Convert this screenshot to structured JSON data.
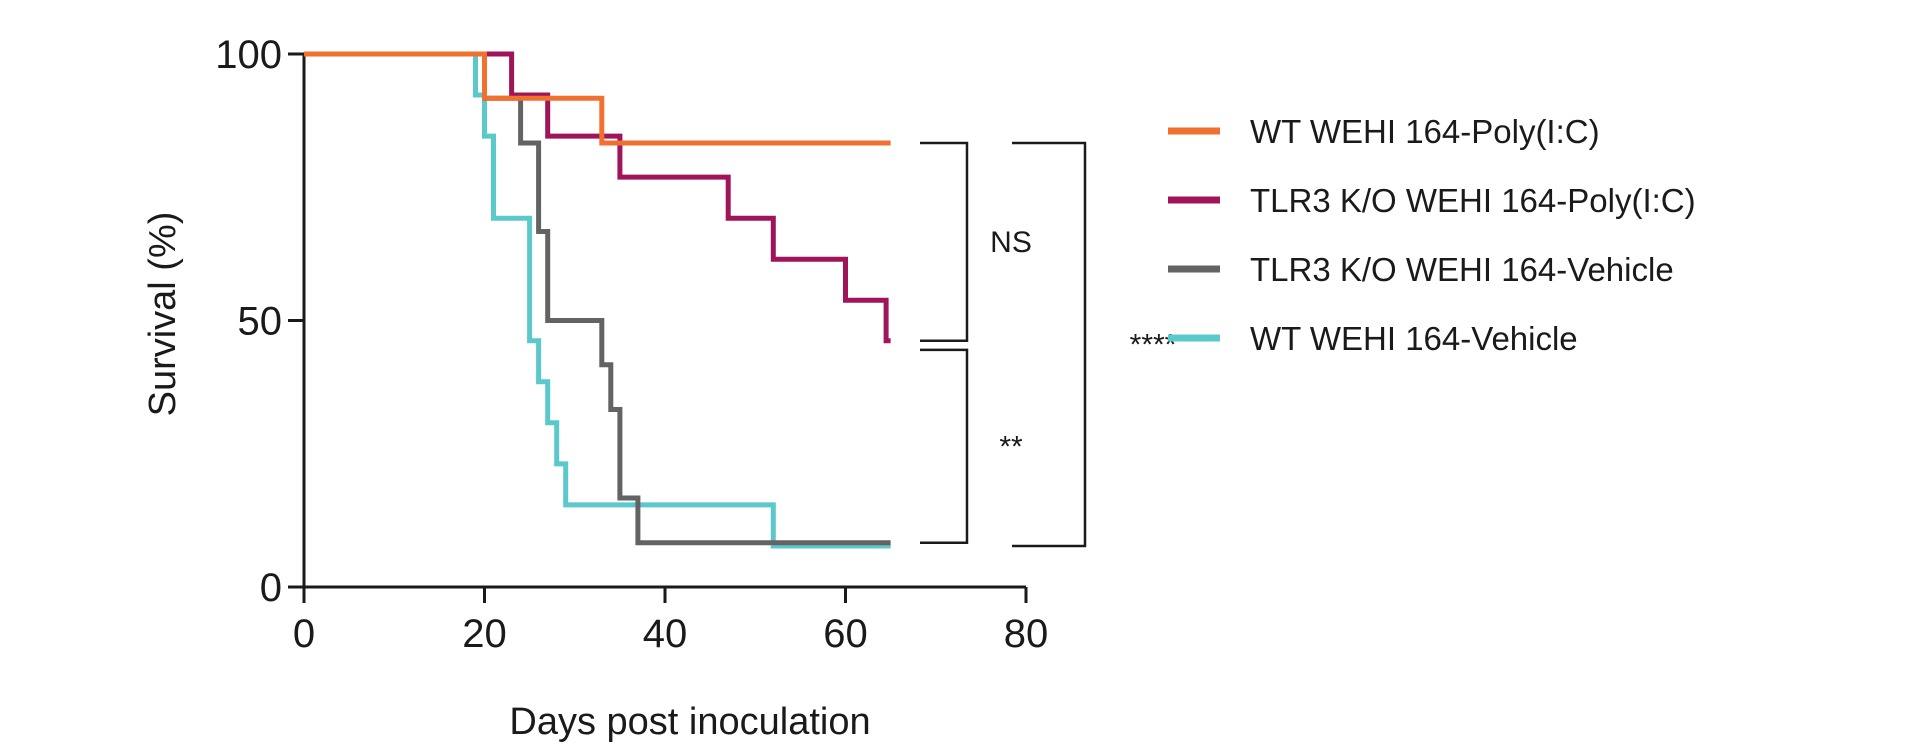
{
  "chart_data": {
    "type": "line",
    "subtype": "kaplan-meier",
    "title": "",
    "xlabel": "Days post inoculation",
    "ylabel": "Survival (%)",
    "xlim": [
      0,
      80
    ],
    "ylim": [
      0,
      100
    ],
    "xticks": [
      "0",
      "20",
      "40",
      "60",
      "80"
    ],
    "yticks": [
      "0",
      "50",
      "100"
    ],
    "grid": false,
    "legend_position": "right",
    "series": [
      {
        "name": "WT WEHI 164-Poly(I:C)",
        "color": "#f07030",
        "points": [
          [
            0,
            100
          ],
          [
            20,
            100
          ],
          [
            20,
            91.7
          ],
          [
            33,
            91.7
          ],
          [
            33,
            83.3
          ],
          [
            65,
            83.3
          ]
        ]
      },
      {
        "name": "TLR3 K/O WEHI 164-Poly(I:C)",
        "color": "#a0155a",
        "points": [
          [
            0,
            100
          ],
          [
            23,
            100
          ],
          [
            23,
            92.3
          ],
          [
            27,
            92.3
          ],
          [
            27,
            84.6
          ],
          [
            35,
            84.6
          ],
          [
            35,
            76.9
          ],
          [
            47,
            76.9
          ],
          [
            47,
            69.2
          ],
          [
            52,
            69.2
          ],
          [
            52,
            61.5
          ],
          [
            60,
            61.5
          ],
          [
            60,
            53.8
          ],
          [
            64.5,
            53.8
          ],
          [
            64.5,
            46.2
          ],
          [
            65,
            46.2
          ]
        ]
      },
      {
        "name": "TLR3 K/O WEHI 164-Vehicle",
        "color": "#636363",
        "points": [
          [
            0,
            100
          ],
          [
            20,
            100
          ],
          [
            20,
            91.7
          ],
          [
            24,
            91.7
          ],
          [
            24,
            83.3
          ],
          [
            26,
            83.3
          ],
          [
            26,
            66.7
          ],
          [
            27,
            66.7
          ],
          [
            27,
            50
          ],
          [
            33,
            50
          ],
          [
            33,
            41.7
          ],
          [
            34,
            41.7
          ],
          [
            34,
            33.3
          ],
          [
            35,
            33.3
          ],
          [
            35,
            16.7
          ],
          [
            37,
            16.7
          ],
          [
            37,
            8.3
          ],
          [
            65,
            8.3
          ]
        ]
      },
      {
        "name": "WT WEHI 164-Vehicle",
        "color": "#5bc8cc",
        "points": [
          [
            0,
            100
          ],
          [
            19,
            100
          ],
          [
            19,
            92.3
          ],
          [
            20,
            92.3
          ],
          [
            20,
            84.6
          ],
          [
            21,
            84.6
          ],
          [
            21,
            69.2
          ],
          [
            25,
            69.2
          ],
          [
            25,
            46.2
          ],
          [
            26,
            46.2
          ],
          [
            26,
            38.5
          ],
          [
            27,
            38.5
          ],
          [
            27,
            30.8
          ],
          [
            28,
            30.8
          ],
          [
            28,
            23.1
          ],
          [
            29,
            23.1
          ],
          [
            29,
            15.4
          ],
          [
            52,
            15.4
          ],
          [
            52,
            7.7
          ],
          [
            65,
            7.7
          ]
        ]
      }
    ],
    "annotations": [
      {
        "label": "NS",
        "y_top": 83.3,
        "y_bottom": 46.2
      },
      {
        "label": "**",
        "y_top": 44.5,
        "y_bottom": 8.3
      },
      {
        "label": "****",
        "y_top": 83.3,
        "y_bottom": 7.7
      }
    ]
  }
}
